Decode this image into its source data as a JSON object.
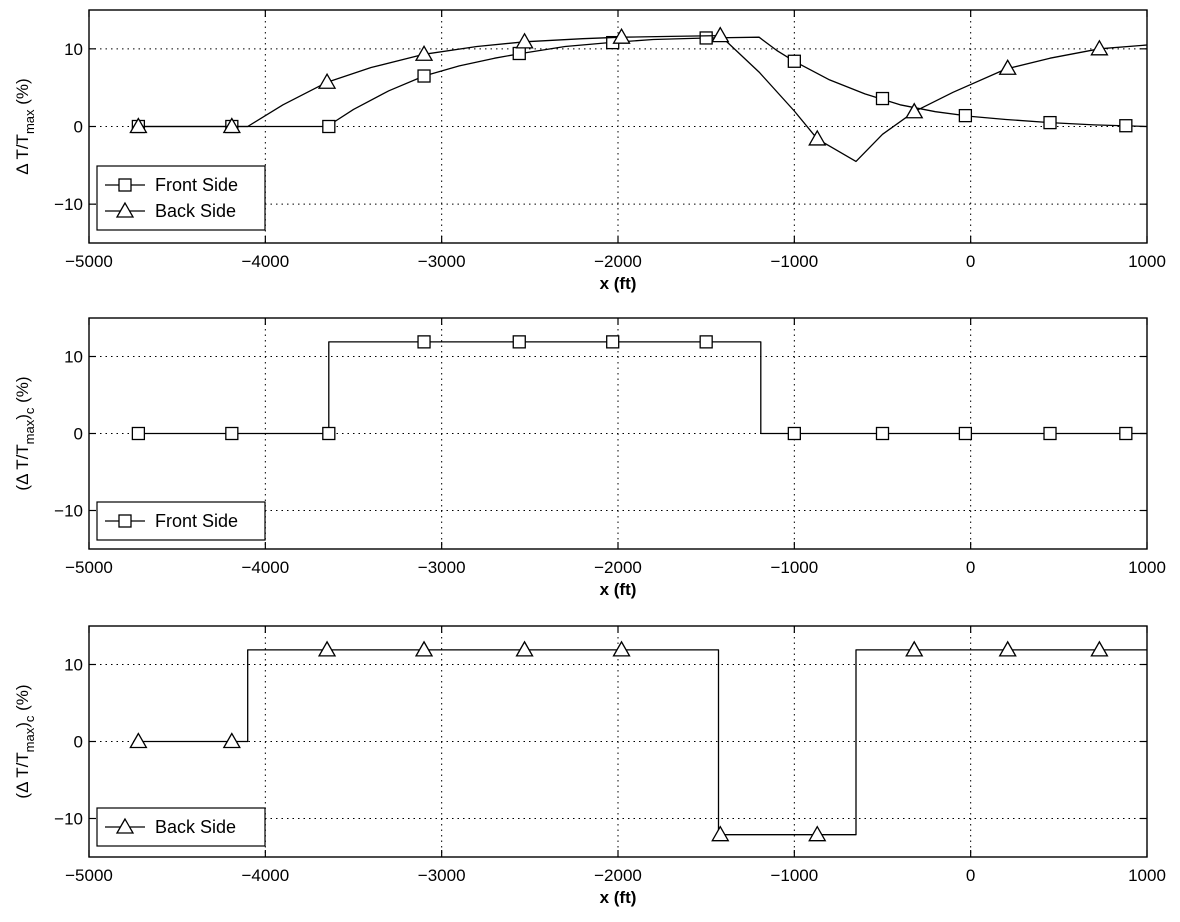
{
  "chart_data": [
    {
      "type": "line",
      "xlabel": "x (ft)",
      "ylabel": "Δ T/T",
      "ylabel_sub": "max",
      "ylabel_unit": "(%)",
      "xlim": [
        -5000,
        1000
      ],
      "ylim": [
        -15,
        15
      ],
      "xticks": [
        -5000,
        -4000,
        -3000,
        -2000,
        -1000,
        0,
        1000
      ],
      "yticks": [
        -10,
        0,
        10
      ],
      "grid": true,
      "legend_position": "bottom-left",
      "series": [
        {
          "name": "Front Side",
          "marker": "square",
          "curve": [
            [
              -4750,
              0
            ],
            [
              -3650,
              0
            ],
            [
              -3500,
              2.2
            ],
            [
              -3300,
              4.6
            ],
            [
              -3100,
              6.5
            ],
            [
              -2900,
              7.8
            ],
            [
              -2700,
              8.8
            ],
            [
              -2550,
              9.4
            ],
            [
              -2300,
              10.3
            ],
            [
              -2050,
              10.8
            ],
            [
              -1800,
              11.2
            ],
            [
              -1500,
              11.4
            ],
            [
              -1200,
              11.5
            ],
            [
              -1100,
              9.8
            ],
            [
              -1000,
              8.4
            ],
            [
              -800,
              6.0
            ],
            [
              -600,
              4.2
            ],
            [
              -400,
              2.8
            ],
            [
              -200,
              1.9
            ],
            [
              0,
              1.3
            ],
            [
              200,
              0.9
            ],
            [
              450,
              0.5
            ],
            [
              700,
              0.2
            ],
            [
              1000,
              0
            ]
          ],
          "markers": [
            [
              -4720,
              0
            ],
            [
              -4190,
              0
            ],
            [
              -3640,
              0
            ],
            [
              -3100,
              6.5
            ],
            [
              -2560,
              9.4
            ],
            [
              -2030,
              10.8
            ],
            [
              -1500,
              11.4
            ],
            [
              -1000,
              8.4
            ],
            [
              -500,
              3.6
            ],
            [
              -30,
              1.4
            ],
            [
              450,
              0.5
            ],
            [
              880,
              0.1
            ]
          ]
        },
        {
          "name": "Back Side",
          "marker": "triangle",
          "curve": [
            [
              -4750,
              0
            ],
            [
              -4100,
              0
            ],
            [
              -3900,
              2.8
            ],
            [
              -3650,
              5.7
            ],
            [
              -3400,
              7.6
            ],
            [
              -3100,
              9.3
            ],
            [
              -2800,
              10.3
            ],
            [
              -2530,
              10.9
            ],
            [
              -2200,
              11.3
            ],
            [
              -1980,
              11.5
            ],
            [
              -1700,
              11.6
            ],
            [
              -1420,
              11.7
            ],
            [
              -1200,
              7.0
            ],
            [
              -1000,
              2.0
            ],
            [
              -870,
              -1.6
            ],
            [
              -650,
              -4.5
            ],
            [
              -500,
              -1.0
            ],
            [
              -320,
              1.9
            ],
            [
              -100,
              4.4
            ],
            [
              200,
              7.4
            ],
            [
              450,
              8.8
            ],
            [
              730,
              10.0
            ],
            [
              1000,
              10.5
            ]
          ],
          "markers": [
            [
              -4720,
              0
            ],
            [
              -4190,
              0
            ],
            [
              -3650,
              5.7
            ],
            [
              -3100,
              9.3
            ],
            [
              -2530,
              10.9
            ],
            [
              -1980,
              11.5
            ],
            [
              -1420,
              11.7
            ],
            [
              -870,
              -1.6
            ],
            [
              -320,
              1.9
            ],
            [
              210,
              7.5
            ],
            [
              730,
              10.0
            ]
          ]
        }
      ]
    },
    {
      "type": "line",
      "xlabel": "x (ft)",
      "ylabel": "(Δ T/T",
      "ylabel_sub": "max",
      "ylabel_close": ")",
      "ylabel_sub2": "c",
      "ylabel_unit": "(%)",
      "xlim": [
        -5000,
        1000
      ],
      "ylim": [
        -15,
        15
      ],
      "xticks": [
        -5000,
        -4000,
        -3000,
        -2000,
        -1000,
        0,
        1000
      ],
      "yticks": [
        -10,
        0,
        10
      ],
      "grid": true,
      "legend_position": "bottom-left",
      "series": [
        {
          "name": "Front Side",
          "marker": "square",
          "curve": [
            [
              -4750,
              0
            ],
            [
              -3640,
              0
            ],
            [
              -3640,
              11.9
            ],
            [
              -1190,
              11.9
            ],
            [
              -1190,
              0
            ],
            [
              1000,
              0
            ]
          ],
          "markers": [
            [
              -4720,
              0
            ],
            [
              -4190,
              0
            ],
            [
              -3640,
              0
            ],
            [
              -3100,
              11.9
            ],
            [
              -2560,
              11.9
            ],
            [
              -2030,
              11.9
            ],
            [
              -1500,
              11.9
            ],
            [
              -1000,
              0
            ],
            [
              -500,
              0
            ],
            [
              -30,
              0
            ],
            [
              450,
              0
            ],
            [
              880,
              0
            ]
          ]
        }
      ]
    },
    {
      "type": "line",
      "xlabel": "x (ft)",
      "ylabel": "(Δ T/T",
      "ylabel_sub": "max",
      "ylabel_close": ")",
      "ylabel_sub2": "c",
      "ylabel_unit": "(%)",
      "xlim": [
        -5000,
        1000
      ],
      "ylim": [
        -15,
        15
      ],
      "xticks": [
        -5000,
        -4000,
        -3000,
        -2000,
        -1000,
        0,
        1000
      ],
      "yticks": [
        -10,
        0,
        10
      ],
      "grid": true,
      "legend_position": "bottom-left",
      "series": [
        {
          "name": "Back Side",
          "marker": "triangle",
          "curve": [
            [
              -4750,
              0
            ],
            [
              -4100,
              0
            ],
            [
              -4100,
              11.9
            ],
            [
              -1430,
              11.9
            ],
            [
              -1430,
              -12.1
            ],
            [
              -650,
              -12.1
            ],
            [
              -650,
              11.9
            ],
            [
              1000,
              11.9
            ]
          ],
          "markers": [
            [
              -4720,
              0
            ],
            [
              -4190,
              0
            ],
            [
              -3650,
              11.9
            ],
            [
              -3100,
              11.9
            ],
            [
              -2530,
              11.9
            ],
            [
              -1980,
              11.9
            ],
            [
              -1420,
              -12.1
            ],
            [
              -870,
              -12.1
            ],
            [
              -320,
              11.9
            ],
            [
              210,
              11.9
            ],
            [
              730,
              11.9
            ]
          ]
        }
      ]
    }
  ]
}
